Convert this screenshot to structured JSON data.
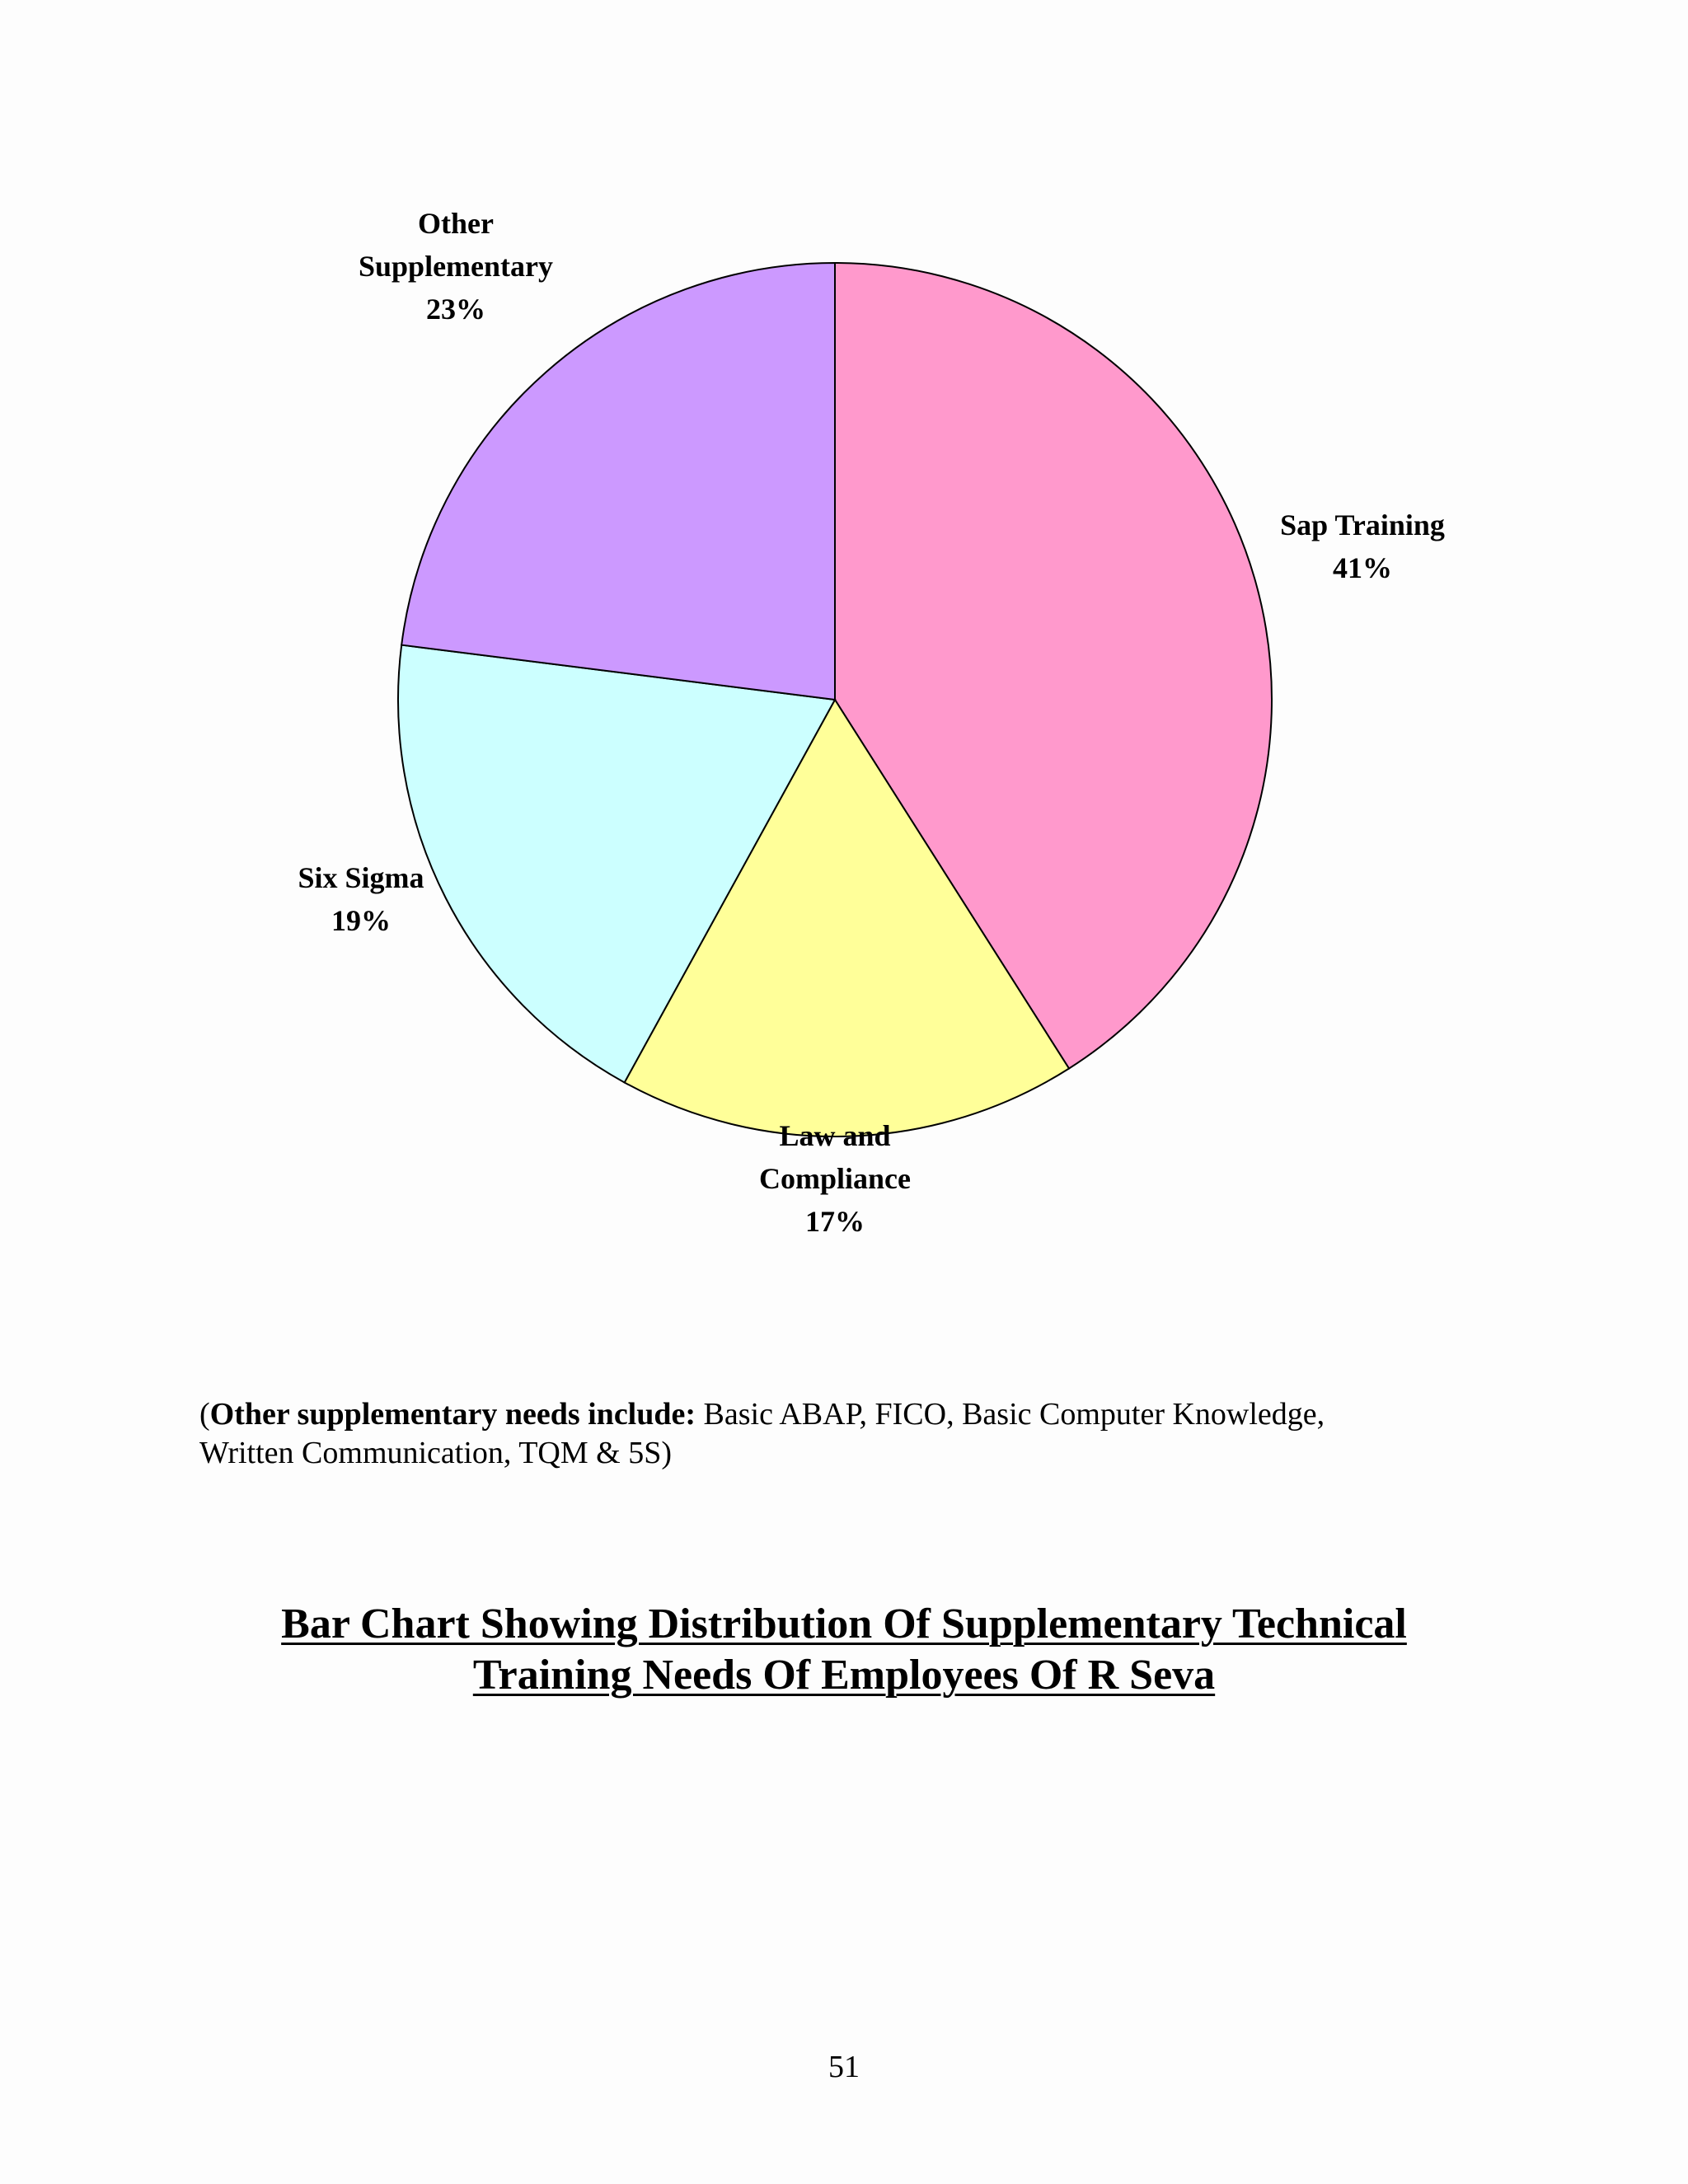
{
  "chart_data": {
    "type": "pie",
    "slices": [
      {
        "label": "Sap Training",
        "label_lines": [
          "Sap Training"
        ],
        "percent_text": "41%",
        "value": 41,
        "color": "#ff99cc"
      },
      {
        "label": "Law and Compliance",
        "label_lines": [
          "Law and",
          "Compliance"
        ],
        "percent_text": "17%",
        "value": 17,
        "color": "#ffff99"
      },
      {
        "label": "Six Sigma",
        "label_lines": [
          "Six Sigma"
        ],
        "percent_text": "19%",
        "value": 19,
        "color": "#ccffff"
      },
      {
        "label": "Other Supplementary",
        "label_lines": [
          "Other",
          "Supplementary"
        ],
        "percent_text": "23%",
        "value": 23,
        "color": "#cc99ff"
      }
    ],
    "start_angle": "12 o'clock",
    "direction": "clockwise",
    "legend": "none",
    "edge_color": "#000000"
  },
  "note": {
    "bold_prefix": "Other supplementary needs include:",
    "text_line1": " Basic ABAP, FICO, Basic Computer Knowledge,",
    "text_line2": "Written Communication, TQM & 5S)",
    "open_paren": "("
  },
  "heading": {
    "line1": "Bar Chart Showing Distribution Of Supplementary Technical",
    "line2": "Training Needs Of Employees Of R Seva"
  },
  "page_number": "51"
}
